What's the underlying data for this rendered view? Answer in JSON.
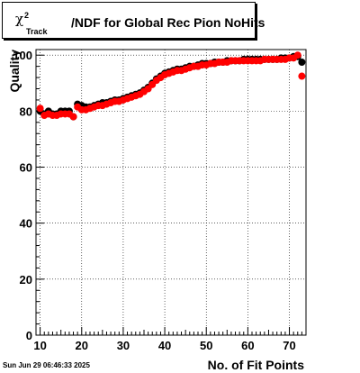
{
  "chart_data": {
    "type": "scatter",
    "title": {
      "prefix": "χ",
      "sup": "2",
      "sub": "Track",
      "main": "/NDF for Global Rec Pion NoHits"
    },
    "xlabel": "No. of Fit Points",
    "ylabel": "Quality",
    "xlim": [
      9,
      74
    ],
    "ylim": [
      0,
      102
    ],
    "x_ticks": [
      10,
      20,
      30,
      40,
      50,
      60,
      70
    ],
    "y_ticks": [
      0,
      20,
      40,
      60,
      80,
      100
    ],
    "grid": true,
    "series": [
      {
        "color": "#000000",
        "points": [
          [
            10,
            80
          ],
          [
            11,
            79
          ],
          [
            12,
            80
          ],
          [
            13,
            79
          ],
          [
            14,
            79
          ],
          [
            15,
            80
          ],
          [
            16,
            80
          ],
          [
            17,
            80
          ],
          [
            18,
            78
          ],
          [
            19,
            82.5
          ],
          [
            20,
            82
          ],
          [
            21,
            81.5
          ],
          [
            22,
            81.5
          ],
          [
            23,
            82
          ],
          [
            24,
            82.5
          ],
          [
            25,
            83
          ],
          [
            26,
            83
          ],
          [
            27,
            83.5
          ],
          [
            28,
            84
          ],
          [
            29,
            84
          ],
          [
            30,
            84.5
          ],
          [
            31,
            85
          ],
          [
            32,
            85.5
          ],
          [
            33,
            86
          ],
          [
            34,
            86.5
          ],
          [
            35,
            87.5
          ],
          [
            36,
            88.5
          ],
          [
            37,
            90
          ],
          [
            38,
            91.5
          ],
          [
            39,
            92.5
          ],
          [
            40,
            93.5
          ],
          [
            41,
            94
          ],
          [
            42,
            94.5
          ],
          [
            43,
            95
          ],
          [
            44,
            95
          ],
          [
            45,
            95.5
          ],
          [
            46,
            96
          ],
          [
            47,
            96
          ],
          [
            48,
            96.5
          ],
          [
            49,
            97
          ],
          [
            50,
            97
          ],
          [
            51,
            97
          ],
          [
            52,
            97.5
          ],
          [
            53,
            97.5
          ],
          [
            54,
            97.5
          ],
          [
            55,
            98
          ],
          [
            56,
            98
          ],
          [
            57,
            98
          ],
          [
            58,
            98
          ],
          [
            59,
            98.5
          ],
          [
            60,
            98.5
          ],
          [
            61,
            98.5
          ],
          [
            62,
            98.5
          ],
          [
            63,
            98.5
          ],
          [
            64,
            98.5
          ],
          [
            65,
            98.5
          ],
          [
            66,
            98.5
          ],
          [
            67,
            98.5
          ],
          [
            68,
            99
          ],
          [
            69,
            99
          ],
          [
            70,
            99
          ],
          [
            71,
            99.5
          ],
          [
            72,
            99.5
          ],
          [
            73,
            97.5
          ]
        ]
      },
      {
        "color": "#ff0000",
        "points": [
          [
            10,
            81
          ],
          [
            11,
            78.5
          ],
          [
            12,
            79
          ],
          [
            13,
            78.5
          ],
          [
            14,
            78.5
          ],
          [
            15,
            79
          ],
          [
            16,
            79
          ],
          [
            17,
            79
          ],
          [
            18,
            78
          ],
          [
            19,
            81.5
          ],
          [
            20,
            80.5
          ],
          [
            21,
            80.5
          ],
          [
            22,
            81
          ],
          [
            23,
            81.5
          ],
          [
            24,
            82
          ],
          [
            25,
            82
          ],
          [
            26,
            82.5
          ],
          [
            27,
            83
          ],
          [
            28,
            83.5
          ],
          [
            29,
            83.5
          ],
          [
            30,
            84
          ],
          [
            31,
            84.5
          ],
          [
            32,
            85
          ],
          [
            33,
            85.5
          ],
          [
            34,
            86
          ],
          [
            35,
            87
          ],
          [
            36,
            88
          ],
          [
            37,
            89.5
          ],
          [
            38,
            91
          ],
          [
            39,
            92
          ],
          [
            40,
            93
          ],
          [
            41,
            93.5
          ],
          [
            42,
            94
          ],
          [
            43,
            94.5
          ],
          [
            44,
            94.5
          ],
          [
            45,
            95
          ],
          [
            46,
            95.5
          ],
          [
            47,
            96
          ],
          [
            48,
            96
          ],
          [
            49,
            96.5
          ],
          [
            50,
            96.5
          ],
          [
            51,
            97
          ],
          [
            52,
            97
          ],
          [
            53,
            97.5
          ],
          [
            54,
            97.5
          ],
          [
            55,
            97.5
          ],
          [
            56,
            98
          ],
          [
            57,
            98
          ],
          [
            58,
            98
          ],
          [
            59,
            98
          ],
          [
            60,
            98
          ],
          [
            61,
            98
          ],
          [
            62,
            98
          ],
          [
            63,
            98
          ],
          [
            64,
            98.5
          ],
          [
            65,
            98.5
          ],
          [
            66,
            98.5
          ],
          [
            67,
            98.5
          ],
          [
            68,
            98.5
          ],
          [
            69,
            98.5
          ],
          [
            70,
            99
          ],
          [
            71,
            99
          ],
          [
            72,
            100
          ],
          [
            73,
            92.5
          ]
        ]
      }
    ]
  },
  "footer": {
    "date": "Sun Jun 29 06:46:33 2025"
  }
}
